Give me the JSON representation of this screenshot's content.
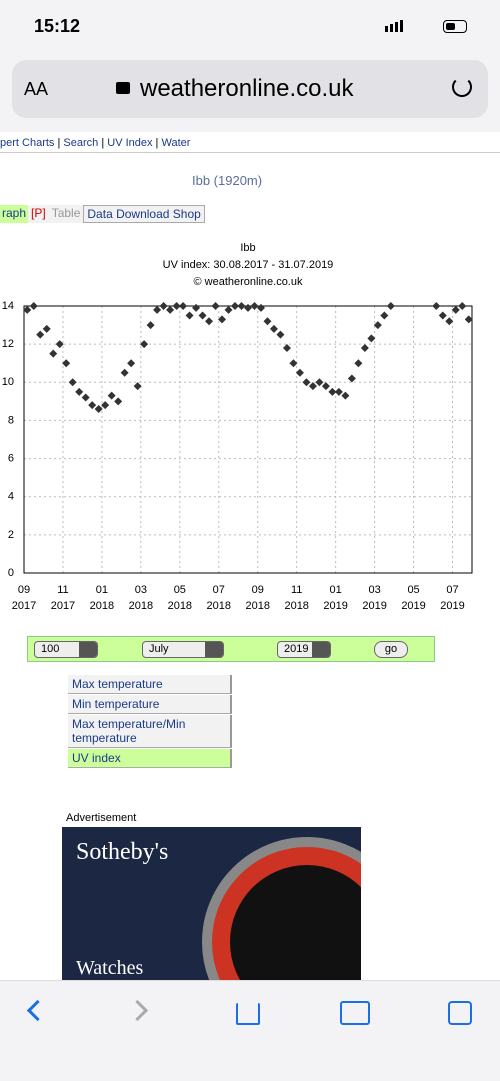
{
  "status_bar": {
    "time": "15:12"
  },
  "browser": {
    "text_size": "AA",
    "url": "weatheronline.co.uk"
  },
  "nav": [
    "pert Charts",
    "Search",
    "UV Index",
    "Water"
  ],
  "location": "Ibb (1920m)",
  "tabs": {
    "graph": "raph",
    "p": "[P]",
    "table": "Table",
    "shop": "Data Download Shop"
  },
  "chart_data": {
    "type": "scatter",
    "title": "Ibb",
    "subtitle": "UV index: 30.08.2017 - 31.07.2019",
    "credit": "© weatheronline.co.uk",
    "x": [
      "2017-09",
      "2017-09",
      "2017-09",
      "2017-10",
      "2017-10",
      "2017-10",
      "2017-11",
      "2017-11",
      "2017-11",
      "2017-12",
      "2017-12",
      "2017-12",
      "2018-01",
      "2018-01",
      "2018-01",
      "2018-02",
      "2018-02",
      "2018-02",
      "2018-03",
      "2018-03",
      "2018-03",
      "2018-04",
      "2018-04",
      "2018-04",
      "2018-05",
      "2018-05",
      "2018-05",
      "2018-06",
      "2018-06",
      "2018-06",
      "2018-07",
      "2018-07",
      "2018-07",
      "2018-08",
      "2018-08",
      "2018-08",
      "2018-09",
      "2018-09",
      "2018-09",
      "2018-10",
      "2018-10",
      "2018-10",
      "2018-11",
      "2018-11",
      "2018-11",
      "2018-12",
      "2018-12",
      "2018-12",
      "2019-01",
      "2019-01",
      "2019-01",
      "2019-02",
      "2019-02",
      "2019-02",
      "2019-03",
      "2019-03",
      "2019-03",
      "2019-06",
      "2019-06",
      "2019-06",
      "2019-07",
      "2019-07",
      "2019-07"
    ],
    "values": [
      13.8,
      14,
      12.5,
      12.8,
      11.5,
      12,
      11,
      10,
      9.5,
      9.2,
      8.8,
      8.6,
      8.8,
      9.3,
      9,
      10.5,
      11,
      9.8,
      12,
      13,
      13.8,
      14,
      13.8,
      14,
      14,
      13.5,
      13.9,
      13.5,
      13.2,
      14,
      13.3,
      13.8,
      14,
      14,
      13.9,
      14,
      13.9,
      13.2,
      12.8,
      12.5,
      11.8,
      11,
      10.5,
      10,
      9.8,
      10,
      9.8,
      9.5,
      9.5,
      9.3,
      10.2,
      11,
      11.8,
      12.3,
      13,
      13.5,
      14,
      14,
      13.5,
      13.2,
      13.8,
      14,
      13.3
    ],
    "color": "#333333",
    "xlim": [
      "2017-09",
      "2019-08"
    ],
    "xticks": [
      {
        "value": "2017-09",
        "label": "09"
      },
      {
        "value": "2017-11",
        "label": "11"
      },
      {
        "value": "2018-01",
        "label": "01"
      },
      {
        "value": "2018-03",
        "label": "03"
      },
      {
        "value": "2018-05",
        "label": "05"
      },
      {
        "value": "2018-07",
        "label": "07"
      },
      {
        "value": "2018-09",
        "label": "09"
      },
      {
        "value": "2018-11",
        "label": "11"
      },
      {
        "value": "2019-01",
        "label": "01"
      },
      {
        "value": "2019-03",
        "label": "03"
      },
      {
        "value": "2019-05",
        "label": "05"
      },
      {
        "value": "2019-07",
        "label": "07"
      }
    ],
    "xtick_years": [
      "2017",
      "2017",
      "2018",
      "2018",
      "2018",
      "2018",
      "2018",
      "2018",
      "2019",
      "2019",
      "2019",
      "2019"
    ],
    "ylim": [
      0,
      14
    ],
    "yticks": [
      0,
      2,
      4,
      6,
      8,
      10,
      12,
      14
    ],
    "grid": true
  },
  "controls": {
    "count": "100",
    "month": "July",
    "year": "2019",
    "button": "go"
  },
  "menu": [
    "Max temperature",
    "Min temperature",
    "Max temperature/Min temperature",
    "UV index"
  ],
  "ad": {
    "label": "Advertisement",
    "brand": "Sotheby's",
    "caption": "Watches"
  }
}
